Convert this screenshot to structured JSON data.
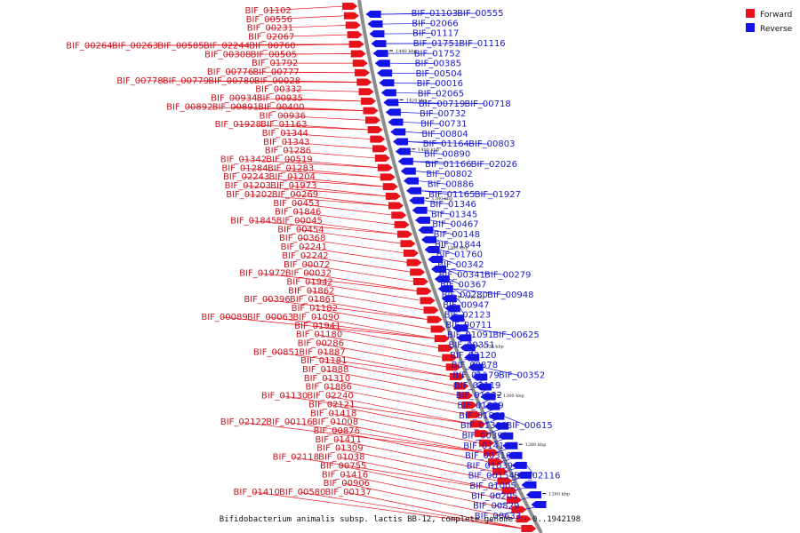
{
  "caption": "Bifidobacterium animalis subsp. lactis BB-12, complete genome. - 0..1942198",
  "colors": {
    "forward": "#e8121b",
    "reverse": "#1414e8",
    "forward_text": "#c8141e",
    "reverse_text": "#1a1ac8",
    "backbone": "#8c8c8c"
  },
  "legend": [
    {
      "label": "Forward",
      "color": "#e8121b"
    },
    {
      "label": "Reverse",
      "color": "#1414e8"
    }
  ],
  "ticks": [
    "1440 kbp",
    "1420 kbp",
    "1400 kbp",
    "1380 kbp",
    "1360 kbp",
    "1340 kbp",
    "1320 kbp",
    "1300 kbp",
    "1280 kbp",
    "1260 kbp"
  ],
  "forward_genes": [
    [
      "BIF_01102"
    ],
    [
      "BIF_00556"
    ],
    [
      "BIF_00231"
    ],
    [
      "BIF_02067"
    ],
    [
      "BIF_00264",
      "BIF_00263",
      "BIF_00585",
      "BIF_02244",
      "BIF_00760"
    ],
    [
      "BIF_00308",
      "BIF_00505"
    ],
    [
      "BIF_01792"
    ],
    [
      "BIF_00776",
      "BIF_00777"
    ],
    [
      "BIF_00778",
      "BIF_00779",
      "BIF_00780",
      "BIF_00028"
    ],
    [
      "BIF_00332"
    ],
    [
      "BIF_00934",
      "BIF_00935"
    ],
    [
      "BIF_00892",
      "BIF_00891",
      "BIF_00400"
    ],
    [
      "BIF_00936"
    ],
    [
      "BIF_01928",
      "BIF_01163"
    ],
    [
      "BIF_01344"
    ],
    [
      "BIF_01343"
    ],
    [
      "BIF_01286"
    ],
    [
      "BIF_01342",
      "BIF_00519"
    ],
    [
      "BIF_01284",
      "BIF_01283"
    ],
    [
      "BIF_02243",
      "BIF_01204"
    ],
    [
      "BIF_01203",
      "BIF_01973"
    ],
    [
      "BIF_01202",
      "BIF_00269"
    ],
    [
      "BIF_00453"
    ],
    [
      "BIF_01846"
    ],
    [
      "BIF_01845",
      "BIF_00045"
    ],
    [
      "BIF_00454"
    ],
    [
      "BIF_00368"
    ],
    [
      "BIF_02241"
    ],
    [
      "BIF_02242"
    ],
    [
      "BIF_00072"
    ],
    [
      "BIF_01972",
      "BIF_00032"
    ],
    [
      "BIF_01942"
    ],
    [
      "BIF_01862"
    ],
    [
      "BIF_00396",
      "BIF_01861"
    ],
    [
      "BIF_01182"
    ],
    [
      "BIF_00089",
      "BIF_00063",
      "BIF_01090"
    ],
    [
      "BIF_01941"
    ],
    [
      "BIF_01180"
    ],
    [
      "BIF_00286"
    ],
    [
      "BIF_00851",
      "BIF_01887"
    ],
    [
      "BIF_01181"
    ],
    [
      "BIF_01888"
    ],
    [
      "BIF_01310"
    ],
    [
      "BIF_01886"
    ],
    [
      "BIF_01130",
      "BIF_02240"
    ],
    [
      "BIF_02121"
    ],
    [
      "BIF_01418"
    ],
    [
      "BIF_02122",
      "BIF_00116",
      "BIF_01008"
    ],
    [
      "BIF_00876"
    ],
    [
      "BIF_01411"
    ],
    [
      "BIF_01309"
    ],
    [
      "BIF_02118",
      "BIF_01038"
    ],
    [
      "BIF_00755"
    ],
    [
      "BIF_01416"
    ],
    [
      "BIF_00906"
    ],
    [
      "BIF_01410",
      "BIF_00580",
      "BIF_00137"
    ]
  ],
  "reverse_genes": [
    [
      "BIF_01103",
      "BIF_00555"
    ],
    [
      "BIF_02066"
    ],
    [
      "BIF_01117"
    ],
    [
      "BIF_01751",
      "BIF_01116"
    ],
    [
      "BIF_01752"
    ],
    [
      "BIF_00385"
    ],
    [
      "BIF_00504"
    ],
    [
      "BIF_00016"
    ],
    [
      "BIF_02065"
    ],
    [
      "BIF_00719",
      "BIF_00718"
    ],
    [
      "BIF_00732"
    ],
    [
      "BIF_00731"
    ],
    [
      "BIF_00804"
    ],
    [
      "BIF_01164",
      "BIF_00803"
    ],
    [
      "BIF_00890"
    ],
    [
      "BIF_01166",
      "BIF_02026"
    ],
    [
      "BIF_00802"
    ],
    [
      "BIF_00886"
    ],
    [
      "BIF_01165",
      "BIF_01927"
    ],
    [
      "BIF_01346"
    ],
    [
      "BIF_01345"
    ],
    [
      "BIF_00467"
    ],
    [
      "BIF_00148"
    ],
    [
      "BIF_01844"
    ],
    [
      "BIF_01760"
    ],
    [
      "BIF_00342"
    ],
    [
      "BIF_00341",
      "BIF_00279"
    ],
    [
      "BIF_00367"
    ],
    [
      "BIF_00280",
      "BIF_00948"
    ],
    [
      "BIF_00947"
    ],
    [
      "BIF_02123"
    ],
    [
      "BIF_00711"
    ],
    [
      "BIF_01091",
      "BIF_00625"
    ],
    [
      "BIF_00351"
    ],
    [
      "BIF_02120"
    ],
    [
      "BIF_00878"
    ],
    [
      "BIF_01179",
      "BIF_00352"
    ],
    [
      "BIF_02119"
    ],
    [
      "BIF_01132"
    ],
    [
      "BIF_01009"
    ],
    [
      "BIF_01869"
    ],
    [
      "BIF_01308",
      "BIF_00615"
    ],
    [
      "BIF_00399"
    ],
    [
      "BIF_01412"
    ],
    [
      "BIF_00316"
    ],
    [
      "BIF_01039"
    ],
    [
      "BIF_00154",
      "BIF_02116"
    ],
    [
      "BIF_01005"
    ],
    [
      "BIF_00205"
    ],
    [
      "BIF_00829"
    ],
    [
      "BIF_00633"
    ]
  ]
}
